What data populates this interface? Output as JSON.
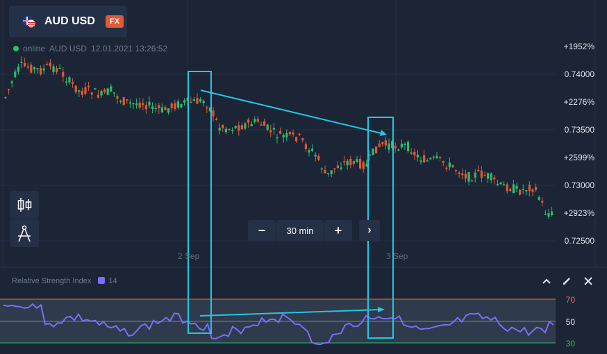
{
  "asset": {
    "name": "AUD USD",
    "badge": "FX",
    "flag_icon": "aud-usd-flag-icon"
  },
  "status": {
    "state": "online",
    "symbol": "AUD USD",
    "timestamp": "12.01.2021 13:26:52"
  },
  "price_axis": {
    "levels": [
      "0.74000",
      "0.73500",
      "0.73000",
      "0.72500"
    ],
    "payouts": [
      "+1952%",
      "+2276%",
      "+2599%",
      "+2923%"
    ]
  },
  "time_axis": {
    "labels": [
      "2 Sep",
      "3 Sep"
    ]
  },
  "zoom": {
    "minus": "−",
    "value": "30 min",
    "plus": "+",
    "next": "›"
  },
  "tools": [
    "candlestick-icon",
    "drawing-tools-icon"
  ],
  "rsi": {
    "title": "Relative Strength Index",
    "period": "14",
    "levels": [
      "70",
      "50",
      "30"
    ],
    "color": "#7b6ef5",
    "upper_color": "#e36d4a",
    "lower_color": "#2ebd6b",
    "controls": [
      "collapse-icon",
      "edit-icon",
      "close-icon"
    ]
  },
  "colors": {
    "up": "#2ebd6b",
    "down": "#e05a36",
    "annotation": "#25c6e3",
    "background": "#1b2535"
  }
}
